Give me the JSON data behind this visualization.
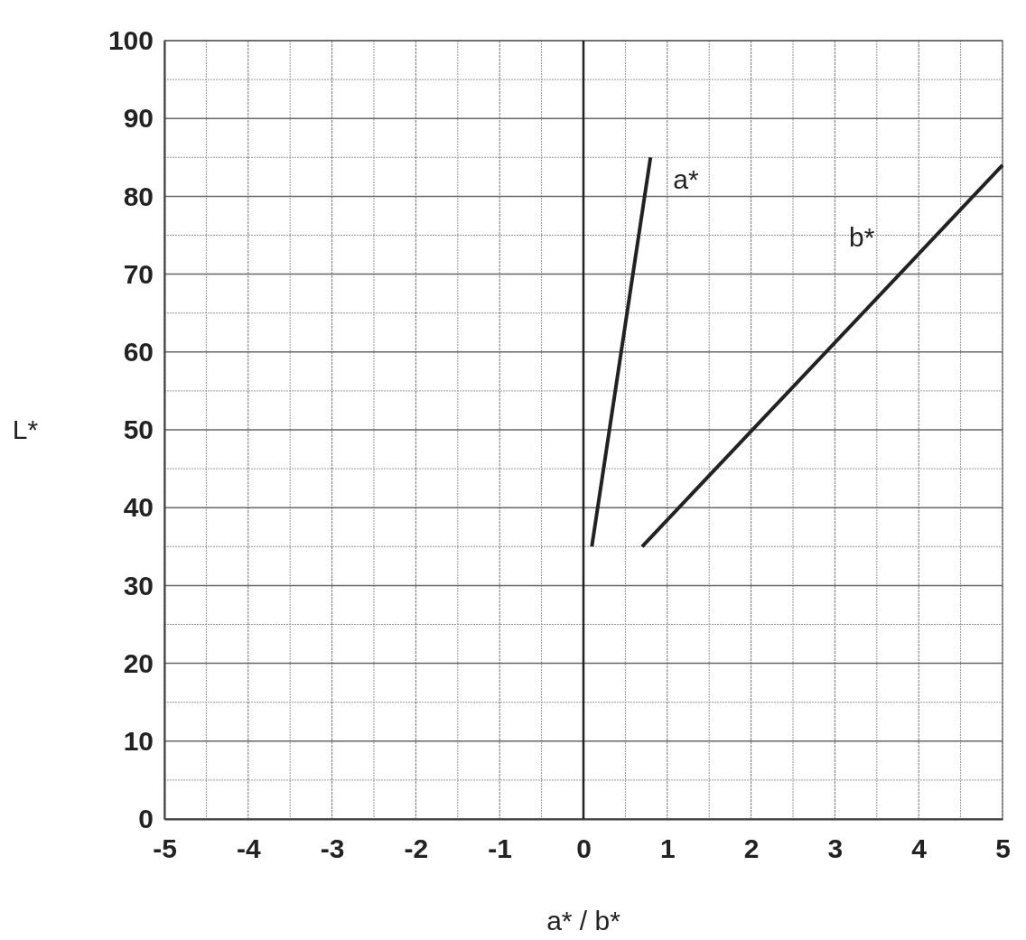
{
  "chart_data": {
    "type": "line",
    "xlabel": "a* / b*",
    "ylabel": "L*",
    "xlim": [
      -5,
      5
    ],
    "xticks": [
      -5,
      -4,
      -3,
      -2,
      -1,
      0,
      1,
      2,
      3,
      4,
      5
    ],
    "ylim": [
      0,
      100
    ],
    "yticks": [
      0,
      10,
      20,
      30,
      40,
      50,
      60,
      70,
      80,
      90,
      100
    ],
    "grid": true,
    "legend": false,
    "marker": "none",
    "line_style": "solid",
    "ref_lines": [
      {
        "axis": "x",
        "value": 0,
        "color": "#222222"
      }
    ],
    "series": [
      {
        "name": "a*",
        "color": "#222222",
        "x": [
          0.1,
          0.8
        ],
        "values": [
          35,
          85
        ]
      },
      {
        "name": "b*",
        "color": "#222222",
        "x": [
          0.7,
          5
        ],
        "values": [
          35,
          84
        ]
      }
    ]
  }
}
